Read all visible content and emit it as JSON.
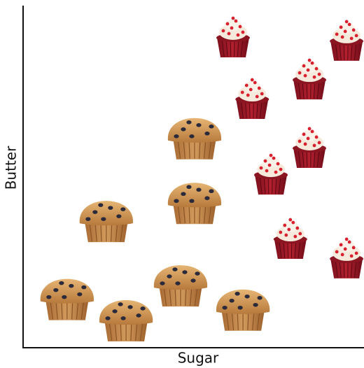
{
  "chart_data": {
    "type": "scatter",
    "x_label": "Sugar",
    "y_label": "Butter",
    "xlim": [
      0,
      10
    ],
    "ylim": [
      0,
      10
    ],
    "series": [
      {
        "marker": "muffin",
        "x": [
          1.29,
          3.02,
          2.44,
          5.03,
          5.03,
          4.62,
          6.45
        ],
        "values": [
          1.48,
          0.86,
          3.76,
          6.18,
          4.29,
          1.88,
          1.17
        ]
      },
      {
        "marker": "cupcake",
        "x": [
          6.16,
          9.49,
          6.72,
          8.4,
          8.4,
          7.27,
          7.84,
          9.49
        ],
        "values": [
          9.1,
          9.0,
          7.3,
          7.87,
          5.87,
          5.09,
          3.21,
          2.64
        ]
      }
    ]
  }
}
